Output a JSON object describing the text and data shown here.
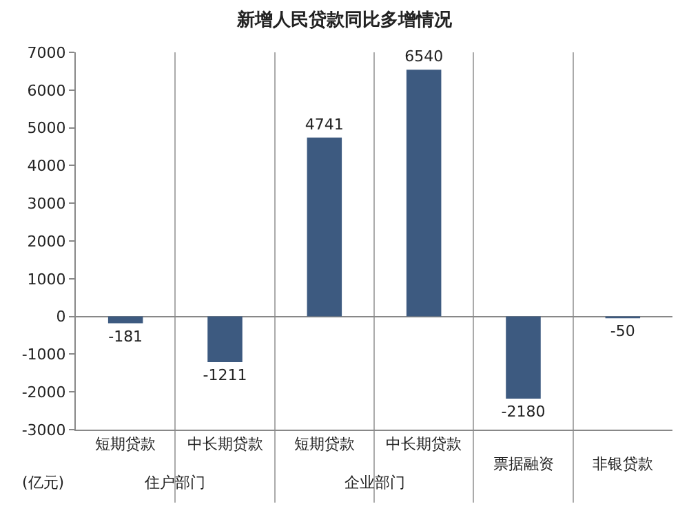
{
  "chart_data": {
    "type": "bar",
    "title": "新增人民贷款同比多增情况",
    "ylabel": "(亿元)",
    "categories": [
      "短期贷款",
      "中长期贷款",
      "短期贷款",
      "中长期贷款",
      "票据融资",
      "非银贷款"
    ],
    "values": [
      -181,
      -1211,
      4741,
      6540,
      -2180,
      -50
    ],
    "color": "#3d5a80",
    "ylim": [
      -3000,
      7000
    ],
    "yticks": [
      -3000,
      -2000,
      -1000,
      0,
      1000,
      2000,
      3000,
      4000,
      5000,
      6000,
      7000
    ],
    "annotations": [
      "住户部门",
      "企业部门"
    ],
    "data_labels": true,
    "grid": "x"
  }
}
